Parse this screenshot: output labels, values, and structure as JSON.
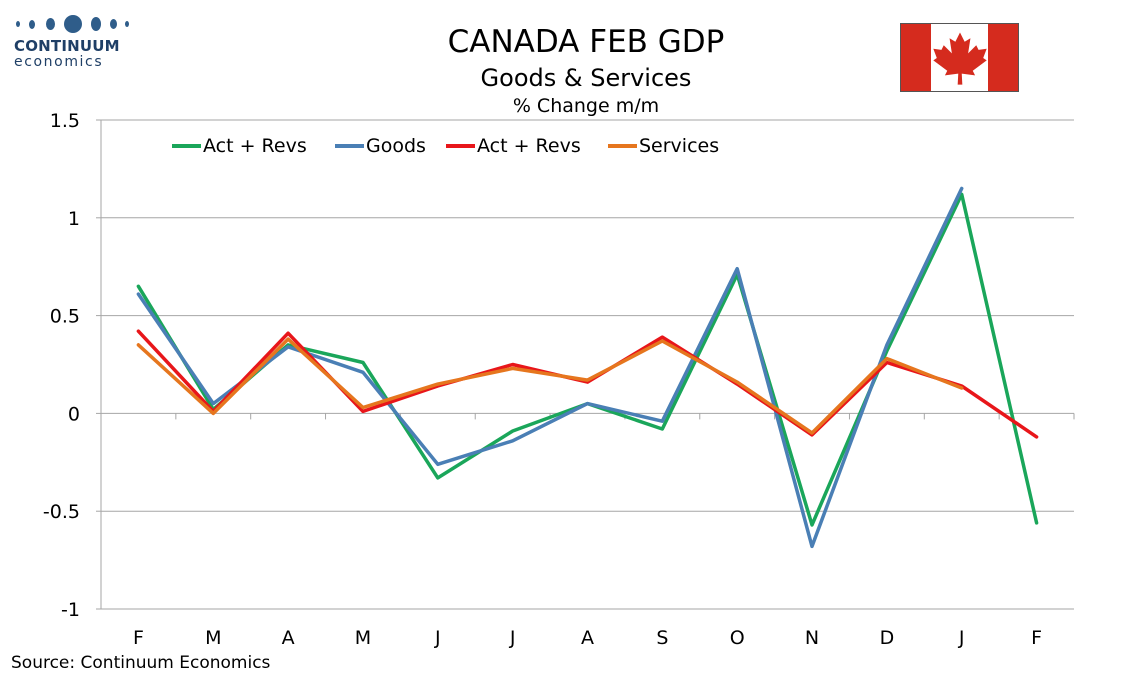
{
  "logo": {
    "name": "CONTINUUM",
    "sub": "economics",
    "mark": "logo-dots"
  },
  "flag": {
    "icon": "canada-flag-icon",
    "red": "#d52b1e"
  },
  "source": "Source: Continuum Economics",
  "chart_data": {
    "type": "line",
    "title": "CANADA FEB GDP",
    "subtitle": "Goods & Services",
    "ylabel_top": "% Change m/m",
    "categories": [
      "F",
      "M",
      "A",
      "M",
      "J",
      "J",
      "A",
      "S",
      "O",
      "N",
      "D",
      "J",
      "F"
    ],
    "ylim": [
      -1,
      1.5
    ],
    "yticks": [
      "1.5",
      "1",
      "0.5",
      "0",
      "-0.5",
      "-1"
    ],
    "ytick_values": [
      1.5,
      1,
      0.5,
      0,
      -0.5,
      -1
    ],
    "grid": true,
    "legend_position": "top-left",
    "series": [
      {
        "name": "Act + Revs",
        "color": "#1aa65a",
        "values": [
          0.65,
          0.02,
          0.35,
          0.26,
          -0.33,
          -0.09,
          0.05,
          -0.08,
          0.71,
          -0.57,
          0.32,
          1.12,
          -0.56
        ]
      },
      {
        "name": "Goods",
        "color": "#4a7fb5",
        "values": [
          0.61,
          0.05,
          0.34,
          0.21,
          -0.26,
          -0.14,
          0.05,
          -0.04,
          0.74,
          -0.68,
          0.35,
          1.15,
          null
        ]
      },
      {
        "name": "Act + Revs",
        "color": "#e8161a",
        "values": [
          0.42,
          0.01,
          0.41,
          0.01,
          0.14,
          0.25,
          0.16,
          0.39,
          0.15,
          -0.11,
          0.26,
          0.14,
          -0.12
        ]
      },
      {
        "name": "Services",
        "color": "#e6761e",
        "values": [
          0.35,
          0.0,
          0.38,
          0.03,
          0.15,
          0.23,
          0.17,
          0.37,
          0.16,
          -0.1,
          0.28,
          0.13,
          null
        ]
      }
    ]
  }
}
